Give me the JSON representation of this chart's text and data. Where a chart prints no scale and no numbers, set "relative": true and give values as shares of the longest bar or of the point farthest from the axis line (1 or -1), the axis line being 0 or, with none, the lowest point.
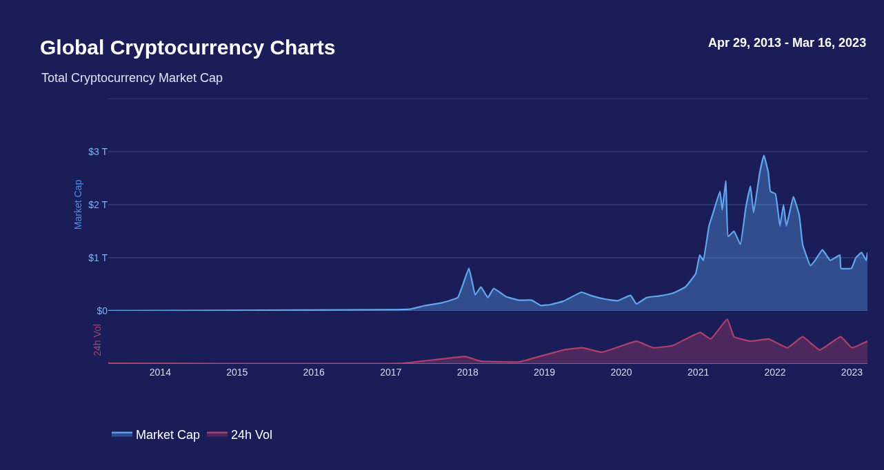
{
  "chart_data": [
    {
      "type": "area",
      "title": "Global Cryptocurrency Charts",
      "subtitle": "Total Cryptocurrency Market Cap",
      "annotations": [
        "Apr 29, 2013 - Mar 16, 2023"
      ],
      "ylabel": "Market Cap",
      "x": [
        "2013-04-29",
        "2017-01-01",
        "2017-04-01",
        "2017-06-15",
        "2017-09-01",
        "2017-11-15",
        "2018-01-07",
        "2018-02-06",
        "2018-03-05",
        "2018-04-07",
        "2018-05-05",
        "2018-07-01",
        "2018-09-01",
        "2018-11-01",
        "2018-12-15",
        "2019-02-01",
        "2019-04-01",
        "2019-06-26",
        "2019-08-15",
        "2019-10-15",
        "2019-12-15",
        "2020-02-14",
        "2020-03-13",
        "2020-05-01",
        "2020-07-01",
        "2020-09-01",
        "2020-11-01",
        "2020-12-20",
        "2021-01-08",
        "2021-01-25",
        "2021-02-21",
        "2021-03-13",
        "2021-04-14",
        "2021-04-25",
        "2021-05-12",
        "2021-05-23",
        "2021-06-20",
        "2021-07-20",
        "2021-08-15",
        "2021-09-06",
        "2021-09-21",
        "2021-10-20",
        "2021-11-09",
        "2021-11-30",
        "2021-12-10",
        "2022-01-03",
        "2022-01-24",
        "2022-02-10",
        "2022-02-24",
        "2022-03-29",
        "2022-04-26",
        "2022-05-12",
        "2022-06-18",
        "2022-07-10",
        "2022-08-14",
        "2022-09-20",
        "2022-11-05",
        "2022-11-10",
        "2022-12-30",
        "2023-01-20",
        "2023-02-16",
        "2023-03-10",
        "2023-03-16"
      ],
      "series": [
        {
          "name": "Market Cap",
          "color": "#5fa8f0",
          "values": [
            0.0,
            0.02,
            0.03,
            0.1,
            0.15,
            0.25,
            0.8,
            0.3,
            0.45,
            0.25,
            0.42,
            0.27,
            0.2,
            0.2,
            0.1,
            0.12,
            0.18,
            0.35,
            0.28,
            0.22,
            0.19,
            0.29,
            0.13,
            0.25,
            0.28,
            0.33,
            0.45,
            0.7,
            1.05,
            0.95,
            1.6,
            1.85,
            2.25,
            1.9,
            2.45,
            1.4,
            1.5,
            1.25,
            1.95,
            2.35,
            1.85,
            2.6,
            2.93,
            2.6,
            2.25,
            2.2,
            1.6,
            2.0,
            1.6,
            2.15,
            1.8,
            1.25,
            0.85,
            0.95,
            1.15,
            0.95,
            1.05,
            0.8,
            0.8,
            1.0,
            1.1,
            0.95,
            1.1
          ]
        }
      ],
      "xlim": [
        "2013-04-29",
        "2023-03-16"
      ],
      "ylim": [
        0,
        4
      ],
      "yticks": [
        {
          "value": 0,
          "label": "$0"
        },
        {
          "value": 1,
          "label": "$1 T"
        },
        {
          "value": 2,
          "label": "$2 T"
        },
        {
          "value": 3,
          "label": "$3 T"
        },
        {
          "value": 4,
          "label": null
        }
      ],
      "grid": "y",
      "tick_labels": "y",
      "legend": "bottom left"
    },
    {
      "type": "area",
      "relative": true,
      "ylabel": "24h Vol",
      "x": [
        "2013-04-29",
        "2017-03-01",
        "2017-12-20",
        "2018-03-01",
        "2018-09-01",
        "2019-04-01",
        "2019-07-01",
        "2019-10-01",
        "2020-03-13",
        "2020-06-01",
        "2020-09-01",
        "2021-01-10",
        "2021-03-01",
        "2021-05-19",
        "2021-06-20",
        "2021-09-07",
        "2021-12-01",
        "2022-03-01",
        "2022-05-12",
        "2022-08-01",
        "2022-11-09",
        "2023-01-01",
        "2023-03-16"
      ],
      "series": [
        {
          "name": "24h Vol",
          "color": "#b0406a",
          "values": [
            0.0,
            0.0,
            0.15,
            0.05,
            0.03,
            0.3,
            0.35,
            0.25,
            0.5,
            0.35,
            0.4,
            0.7,
            0.55,
            1.0,
            0.6,
            0.5,
            0.55,
            0.35,
            0.6,
            0.3,
            0.6,
            0.35,
            0.5
          ]
        }
      ],
      "xlim": [
        "2013-04-29",
        "2023-03-16"
      ],
      "xticks": [
        "2014",
        "2015",
        "2016",
        "2017",
        "2018",
        "2019",
        "2020",
        "2021",
        "2022",
        "2023"
      ],
      "legend": "bottom left"
    }
  ]
}
